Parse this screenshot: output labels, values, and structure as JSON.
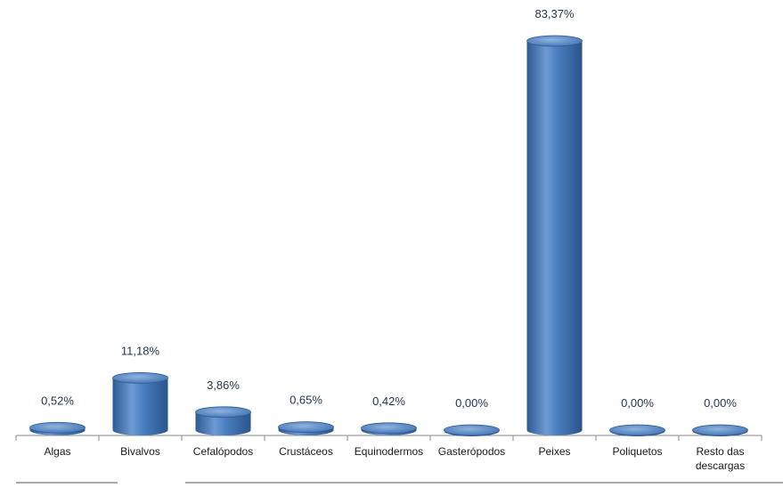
{
  "chart_data": {
    "type": "bar",
    "categories": [
      "Algas",
      "Bivalvos",
      "Cefalópodos",
      "Crustáceos",
      "Equinodermos",
      "Gasterópodos",
      "Peixes",
      "Poliquetos",
      "Resto das descargas"
    ],
    "category_lines": [
      [
        "Algas"
      ],
      [
        "Bivalvos"
      ],
      [
        "Cefalópodos"
      ],
      [
        "Crustáceos"
      ],
      [
        "Equinodermos"
      ],
      [
        "Gasterópodos"
      ],
      [
        "Peixes"
      ],
      [
        "Poliquetos"
      ],
      [
        "Resto das",
        "descargas"
      ]
    ],
    "values": [
      0.52,
      11.18,
      3.86,
      0.65,
      0.42,
      0.0,
      83.37,
      0.0,
      0.0
    ],
    "data_labels": [
      "0,52%",
      "11,18%",
      "3,86%",
      "0,65%",
      "0,42%",
      "0,00%",
      "83,37%",
      "0,00%",
      "0,00%"
    ],
    "ylim": [
      0,
      83.37
    ],
    "grid": false,
    "legend": "none",
    "style": "3d-cylinder",
    "colors": {
      "bar": "#4a7ebf",
      "bar_dark": "#2c5a94",
      "bar_light": "#8fb4e0",
      "axis": "#888888",
      "label": "#1f3550"
    }
  }
}
